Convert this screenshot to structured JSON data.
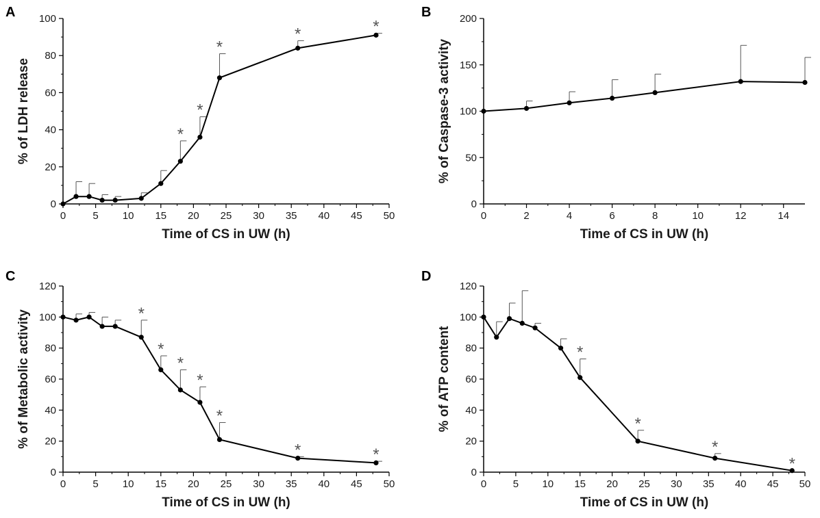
{
  "chart_data": [
    {
      "panel": "A",
      "type": "line",
      "xlabel": "Time of CS in UW (h)",
      "ylabel": "% of LDH release",
      "xlim": [
        0,
        50
      ],
      "ylim": [
        0,
        100
      ],
      "xticks": [
        0,
        5,
        10,
        15,
        20,
        25,
        30,
        35,
        40,
        45,
        50
      ],
      "yticks": [
        0,
        20,
        40,
        60,
        80,
        100
      ],
      "x": [
        0,
        2,
        4,
        6,
        8,
        12,
        15,
        18,
        21,
        24,
        36,
        48
      ],
      "y": [
        0,
        4,
        4,
        2,
        2,
        3,
        11,
        23,
        36,
        68,
        84,
        91
      ],
      "error": [
        0,
        8,
        7,
        3,
        2,
        3,
        7,
        11,
        11,
        13,
        4,
        1
      ],
      "significant": [
        false,
        false,
        false,
        false,
        false,
        false,
        false,
        true,
        true,
        true,
        true,
        true
      ],
      "marker": "*"
    },
    {
      "panel": "B",
      "type": "line",
      "xlabel": "Time of CS in UW (h)",
      "ylabel": "% of Caspase-3 activity",
      "xlim": [
        0,
        15
      ],
      "ylim": [
        0,
        200
      ],
      "xticks": [
        0,
        2,
        4,
        6,
        8,
        10,
        12,
        14
      ],
      "yticks": [
        0,
        50,
        100,
        150,
        200
      ],
      "x": [
        0,
        2,
        4,
        6,
        8,
        12,
        15
      ],
      "y": [
        100,
        103,
        109,
        114,
        120,
        132,
        131
      ],
      "error": [
        0,
        8,
        12,
        20,
        20,
        39,
        27
      ],
      "significant": [
        false,
        false,
        false,
        false,
        false,
        false,
        false
      ],
      "marker": "*"
    },
    {
      "panel": "C",
      "type": "line",
      "xlabel": "Time of CS in UW (h)",
      "ylabel": "% of Metabolic activity",
      "xlim": [
        0,
        50
      ],
      "ylim": [
        0,
        120
      ],
      "xticks": [
        0,
        5,
        10,
        15,
        20,
        25,
        30,
        35,
        40,
        45,
        50
      ],
      "yticks": [
        0,
        20,
        40,
        60,
        80,
        100,
        120
      ],
      "x": [
        0,
        2,
        4,
        6,
        8,
        12,
        15,
        18,
        21,
        24,
        36,
        48
      ],
      "y": [
        100,
        98,
        100,
        94,
        94,
        87,
        66,
        53,
        45,
        21,
        9,
        6
      ],
      "error": [
        0,
        4,
        3,
        6,
        4,
        11,
        9,
        13,
        10,
        11,
        1,
        1
      ],
      "significant": [
        false,
        false,
        false,
        false,
        false,
        true,
        true,
        true,
        true,
        true,
        true,
        true
      ],
      "marker": "*"
    },
    {
      "panel": "D",
      "type": "line",
      "xlabel": "Time of CS in UW (h)",
      "ylabel": "% of ATP content",
      "xlim": [
        0,
        50
      ],
      "ylim": [
        0,
        120
      ],
      "xticks": [
        0,
        5,
        10,
        15,
        20,
        25,
        30,
        35,
        40,
        45,
        50
      ],
      "yticks": [
        0,
        20,
        40,
        60,
        80,
        100,
        120
      ],
      "x": [
        0,
        2,
        4,
        6,
        8,
        12,
        15,
        24,
        36,
        48
      ],
      "y": [
        100,
        87,
        99,
        96,
        93,
        80,
        61,
        20,
        9,
        1
      ],
      "error": [
        0,
        10,
        10,
        21,
        3,
        6,
        12,
        7,
        3,
        0
      ],
      "significant": [
        false,
        false,
        false,
        false,
        false,
        false,
        true,
        true,
        true,
        true
      ],
      "marker": "*"
    }
  ]
}
